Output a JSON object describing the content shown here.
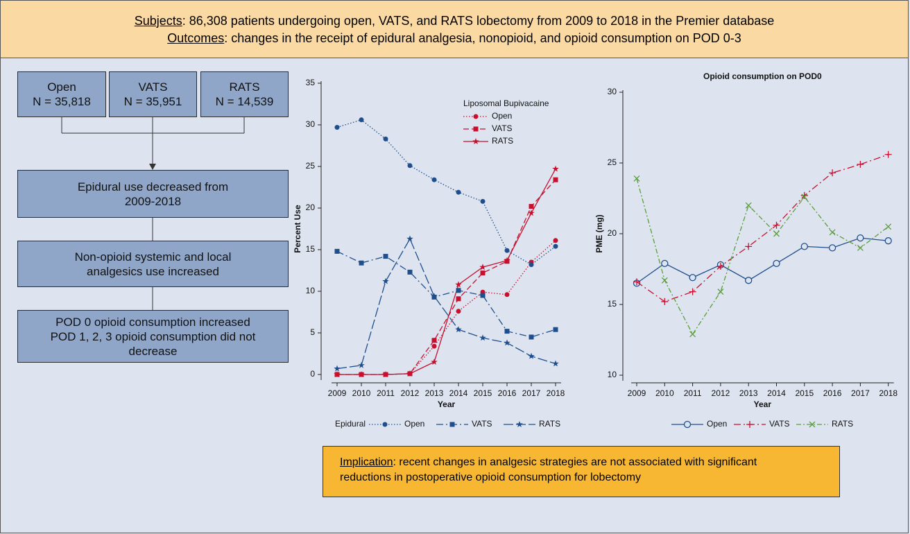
{
  "header": {
    "subjects_label": "Subjects",
    "subjects_text": ": 86,308 patients undergoing open, VATS, and RATS lobectomy from 2009 to 2018 in the Premier database",
    "outcomes_label": "Outcomes",
    "outcomes_text": ": changes in the receipt of epidural analgesia, nonopioid, and opioid consumption on POD 0-3"
  },
  "flow": {
    "groups": [
      {
        "label": "Open",
        "n": "N = 35,818"
      },
      {
        "label": "VATS",
        "n": "N = 35,951"
      },
      {
        "label": "RATS",
        "n": "N = 14,539"
      }
    ],
    "steps": [
      {
        "lines": [
          "Epidural use decreased from",
          "2009-2018"
        ]
      },
      {
        "lines": [
          "Non-opioid systemic and local",
          "analgesics use increased"
        ]
      },
      {
        "lines": [
          "POD 0 opioid consumption increased",
          "POD 1, 2, 3 opioid consumption did not",
          "decrease"
        ]
      }
    ]
  },
  "implication": {
    "label": "Implication",
    "lines": [
      ": recent changes in analgesic strategies are not associated with significant",
      "reductions in postoperative opioid consumption for lobectomy"
    ]
  },
  "chart_data": [
    {
      "type": "line",
      "x_label": "Year",
      "y_label": "Percent Use",
      "categories": [
        "2009",
        "2010",
        "2011",
        "2012",
        "2013",
        "2014",
        "2015",
        "2016",
        "2017",
        "2018"
      ],
      "ylim": [
        0,
        35
      ],
      "yticks": [
        0,
        5,
        10,
        15,
        20,
        25,
        30,
        35
      ],
      "series": [
        {
          "group": "Liposomal Bupivacaine",
          "name": "Open",
          "color": "#c8102e",
          "dash": "dotted",
          "marker": "circle",
          "values": [
            0,
            0,
            0,
            0.1,
            3.4,
            7.6,
            9.9,
            9.6,
            13.5,
            16.1
          ]
        },
        {
          "group": "Liposomal Bupivacaine",
          "name": "VATS",
          "color": "#c8102e",
          "dash": "dashed",
          "marker": "square",
          "values": [
            0,
            0,
            0,
            0.1,
            4.1,
            9.1,
            12.2,
            13.6,
            20.2,
            23.4
          ]
        },
        {
          "group": "Liposomal Bupivacaine",
          "name": "RATS",
          "color": "#c8102e",
          "dash": "solid",
          "marker": "star",
          "values": [
            0,
            0,
            0,
            0.1,
            1.5,
            10.8,
            12.9,
            13.7,
            19.4,
            24.7
          ]
        },
        {
          "group": "Epidural",
          "name": "Open",
          "color": "#1f4e8c",
          "dash": "dotted",
          "marker": "circle",
          "values": [
            29.7,
            30.6,
            28.3,
            25.1,
            23.4,
            21.9,
            20.8,
            14.9,
            13.2,
            15.4
          ]
        },
        {
          "group": "Epidural",
          "name": "VATS",
          "color": "#1f4e8c",
          "dash": "dashdot",
          "marker": "square",
          "values": [
            14.8,
            13.4,
            14.2,
            12.3,
            9.3,
            10.1,
            9.5,
            5.2,
            4.5,
            5.4
          ]
        },
        {
          "group": "Epidural",
          "name": "RATS",
          "color": "#1f4e8c",
          "dash": "longdash",
          "marker": "star",
          "values": [
            0.7,
            1.1,
            11.2,
            16.3,
            9.4,
            5.4,
            4.4,
            3.8,
            2.2,
            1.3
          ]
        }
      ]
    },
    {
      "type": "line",
      "title": "Opioid consumption on POD0",
      "x_label": "Year",
      "y_label": "PME (mg)",
      "categories": [
        "2009",
        "2010",
        "2011",
        "2012",
        "2013",
        "2014",
        "2015",
        "2016",
        "2017",
        "2018"
      ],
      "ylim": [
        10,
        30
      ],
      "yticks": [
        10,
        15,
        20,
        25,
        30
      ],
      "series": [
        {
          "name": "Open",
          "color": "#1f4e8c",
          "dash": "solid",
          "marker": "circle-open",
          "values": [
            16.5,
            17.9,
            16.9,
            17.8,
            16.7,
            17.9,
            19.1,
            19.0,
            19.7,
            19.5
          ]
        },
        {
          "name": "VATS",
          "color": "#c8102e",
          "dash": "dashdot",
          "marker": "plus",
          "values": [
            16.6,
            15.2,
            15.9,
            17.7,
            19.1,
            20.6,
            22.7,
            24.3,
            24.9,
            25.6
          ]
        },
        {
          "name": "RATS",
          "color": "#5a9e3a",
          "dash": "dashdot2",
          "marker": "cross",
          "values": [
            23.9,
            16.7,
            12.9,
            15.9,
            22.0,
            20.0,
            22.6,
            20.1,
            19.0,
            20.5
          ]
        }
      ]
    }
  ]
}
